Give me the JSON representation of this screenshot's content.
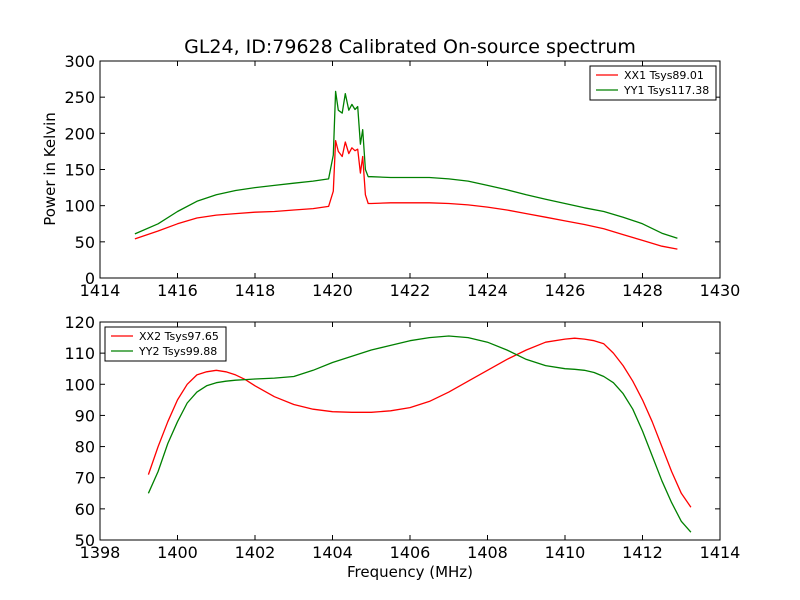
{
  "chart_data": [
    {
      "type": "line",
      "title": "GL24, ID:79628 Calibrated On-source spectrum",
      "xlabel": "",
      "ylabel": "Power in Kelvin",
      "xlim": [
        1414,
        1430
      ],
      "ylim": [
        0,
        300
      ],
      "xticks": [
        1414,
        1416,
        1418,
        1420,
        1422,
        1424,
        1426,
        1428,
        1430
      ],
      "yticks": [
        0,
        50,
        100,
        150,
        200,
        250,
        300
      ],
      "legend": "top-right",
      "series": [
        {
          "name": "XX1 Tsys89.01",
          "color": "#ff0000",
          "x": [
            1414.9,
            1415.5,
            1416.0,
            1416.5,
            1417.0,
            1417.5,
            1418.0,
            1418.5,
            1419.0,
            1419.5,
            1419.9,
            1420.02,
            1420.08,
            1420.15,
            1420.25,
            1420.33,
            1420.42,
            1420.5,
            1420.58,
            1420.65,
            1420.72,
            1420.78,
            1420.85,
            1420.92,
            1421.0,
            1421.5,
            1422.0,
            1422.5,
            1423.0,
            1423.5,
            1424.0,
            1424.5,
            1425.0,
            1425.5,
            1426.0,
            1426.5,
            1427.0,
            1427.5,
            1428.0,
            1428.5,
            1428.9
          ],
          "values": [
            54,
            65,
            75,
            83,
            87,
            89,
            91,
            92,
            94,
            96,
            99,
            120,
            190,
            175,
            168,
            188,
            172,
            180,
            176,
            178,
            145,
            168,
            115,
            103,
            103,
            104,
            104,
            104,
            103,
            101,
            98,
            94,
            89,
            84,
            79,
            74,
            68,
            60,
            52,
            44,
            40
          ]
        },
        {
          "name": "YY1 Tsys117.38",
          "color": "#008000",
          "x": [
            1414.9,
            1415.5,
            1416.0,
            1416.5,
            1417.0,
            1417.5,
            1418.0,
            1418.5,
            1419.0,
            1419.5,
            1419.9,
            1420.02,
            1420.08,
            1420.15,
            1420.25,
            1420.33,
            1420.42,
            1420.5,
            1420.58,
            1420.65,
            1420.72,
            1420.78,
            1420.85,
            1420.92,
            1421.0,
            1421.5,
            1422.0,
            1422.5,
            1423.0,
            1423.5,
            1424.0,
            1424.5,
            1425.0,
            1425.5,
            1426.0,
            1426.5,
            1427.0,
            1427.5,
            1428.0,
            1428.5,
            1428.9
          ],
          "values": [
            61,
            75,
            92,
            106,
            115,
            121,
            125,
            128,
            131,
            134,
            137,
            170,
            258,
            232,
            228,
            255,
            232,
            240,
            233,
            237,
            185,
            205,
            150,
            140,
            140,
            139,
            139,
            139,
            137,
            134,
            128,
            122,
            115,
            109,
            103,
            97,
            92,
            84,
            75,
            62,
            55
          ]
        }
      ]
    },
    {
      "type": "line",
      "title": "",
      "xlabel": "Frequency (MHz)",
      "ylabel": "",
      "xlim": [
        1398,
        1414
      ],
      "ylim": [
        50,
        120
      ],
      "xticks": [
        1398,
        1400,
        1402,
        1404,
        1406,
        1408,
        1410,
        1412,
        1414
      ],
      "yticks": [
        50,
        60,
        70,
        80,
        90,
        100,
        110,
        120
      ],
      "legend": "top-left",
      "series": [
        {
          "name": "XX2 Tsys97.65",
          "color": "#ff0000",
          "x": [
            1399.25,
            1399.5,
            1399.75,
            1400.0,
            1400.25,
            1400.5,
            1400.75,
            1401.0,
            1401.25,
            1401.5,
            1401.75,
            1402.0,
            1402.5,
            1403.0,
            1403.5,
            1404.0,
            1404.5,
            1405.0,
            1405.5,
            1406.0,
            1406.5,
            1407.0,
            1407.5,
            1408.0,
            1408.5,
            1409.0,
            1409.5,
            1410.0,
            1410.25,
            1410.5,
            1410.75,
            1411.0,
            1411.25,
            1411.5,
            1411.75,
            1412.0,
            1412.25,
            1412.5,
            1412.75,
            1413.0,
            1413.25
          ],
          "values": [
            71,
            80,
            88,
            95,
            100,
            103,
            104,
            104.5,
            104,
            103,
            101.5,
            99.5,
            96,
            93.5,
            92,
            91.2,
            91,
            91,
            91.5,
            92.5,
            94.5,
            97.5,
            101,
            104.5,
            108,
            111,
            113.5,
            114.5,
            114.8,
            114.5,
            114,
            113,
            110,
            106,
            101,
            95,
            88,
            80,
            72,
            65,
            60.5
          ]
        },
        {
          "name": "YY2 Tsys99.88",
          "color": "#008000",
          "x": [
            1399.25,
            1399.5,
            1399.75,
            1400.0,
            1400.25,
            1400.5,
            1400.75,
            1401.0,
            1401.25,
            1401.5,
            1401.75,
            1402.0,
            1402.5,
            1403.0,
            1403.5,
            1404.0,
            1404.5,
            1405.0,
            1405.5,
            1406.0,
            1406.5,
            1407.0,
            1407.5,
            1408.0,
            1408.5,
            1409.0,
            1409.5,
            1410.0,
            1410.25,
            1410.5,
            1410.75,
            1411.0,
            1411.25,
            1411.5,
            1411.75,
            1412.0,
            1412.25,
            1412.5,
            1412.75,
            1413.0,
            1413.25
          ],
          "values": [
            65,
            72,
            81,
            88,
            94,
            97.5,
            99.5,
            100.5,
            101,
            101.3,
            101.5,
            101.7,
            102,
            102.5,
            104.5,
            107,
            109,
            111,
            112.5,
            114,
            115,
            115.5,
            115,
            113.5,
            111,
            108,
            106,
            105,
            104.8,
            104.5,
            103.8,
            102.5,
            100.5,
            97,
            92,
            85,
            77,
            69,
            62,
            56,
            52.5
          ]
        }
      ]
    }
  ]
}
